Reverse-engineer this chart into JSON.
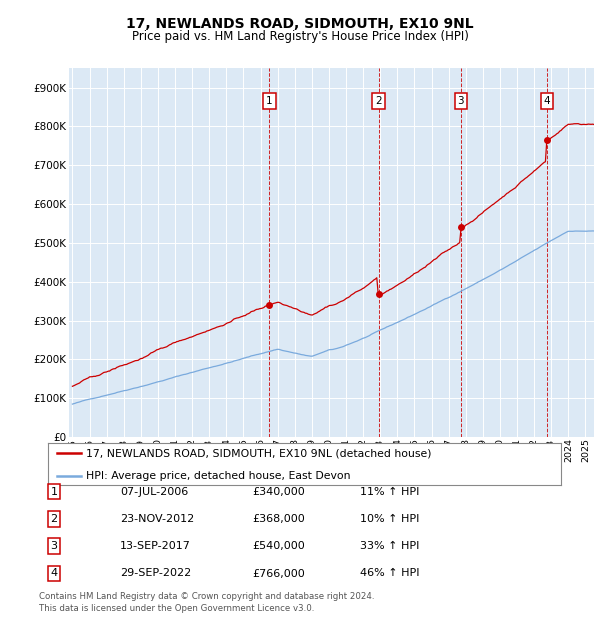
{
  "title": "17, NEWLANDS ROAD, SIDMOUTH, EX10 9NL",
  "subtitle": "Price paid vs. HM Land Registry's House Price Index (HPI)",
  "background_color": "#dce9f5",
  "plot_bg_color": "#dce9f5",
  "ylim": [
    0,
    950000
  ],
  "yticks": [
    0,
    100000,
    200000,
    300000,
    400000,
    500000,
    600000,
    700000,
    800000,
    900000
  ],
  "ytick_labels": [
    "£0",
    "£100K",
    "£200K",
    "£300K",
    "£400K",
    "£500K",
    "£600K",
    "£700K",
    "£800K",
    "£900K"
  ],
  "hpi_color": "#7aaadd",
  "price_color": "#cc0000",
  "legend_entries": [
    "17, NEWLANDS ROAD, SIDMOUTH, EX10 9NL (detached house)",
    "HPI: Average price, detached house, East Devon"
  ],
  "sale_points": [
    {
      "label": "1",
      "year": 2006.52,
      "price": 340000,
      "date": "07-JUL-2006",
      "pct": "11%"
    },
    {
      "label": "2",
      "year": 2012.9,
      "price": 368000,
      "date": "23-NOV-2012",
      "pct": "10%"
    },
    {
      "label": "3",
      "year": 2017.71,
      "price": 540000,
      "date": "13-SEP-2017",
      "pct": "33%"
    },
    {
      "label": "4",
      "year": 2022.75,
      "price": 766000,
      "date": "29-SEP-2022",
      "pct": "46%"
    }
  ],
  "footer_line1": "Contains HM Land Registry data © Crown copyright and database right 2024.",
  "footer_line2": "This data is licensed under the Open Government Licence v3.0.",
  "xlim_start": 1994.8,
  "xlim_end": 2025.5
}
